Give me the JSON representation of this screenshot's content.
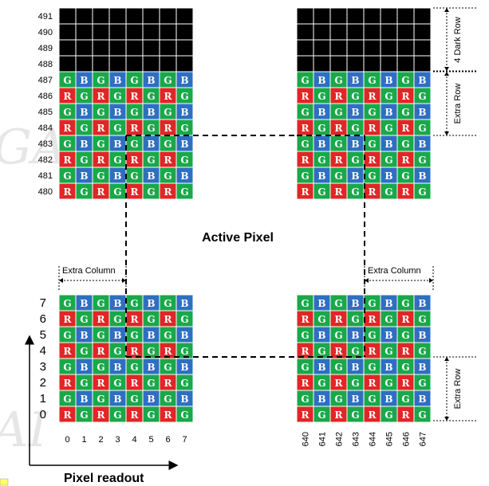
{
  "title": "Active Pixel",
  "axis_label": "Pixel readout",
  "labels": {
    "extra_column": "Extra Column",
    "extra_row": "Extra Row",
    "dark_row": "4 Dark Row"
  },
  "colors": {
    "G": "#1aa84a",
    "B": "#2f6fc2",
    "R": "#e02626",
    "dark": "#000000"
  },
  "blocks": {
    "top_left": {
      "row_labels": [
        "491",
        "490",
        "489",
        "488",
        "487",
        "486",
        "485",
        "484",
        "483",
        "482",
        "481",
        "480"
      ]
    },
    "bottom_left": {
      "row_labels": [
        "7",
        "6",
        "5",
        "4",
        "3",
        "2",
        "1",
        "0"
      ],
      "col_labels": [
        "0",
        "1",
        "2",
        "3",
        "4",
        "5",
        "6",
        "7"
      ]
    },
    "bottom_right": {
      "col_labels": [
        "640",
        "641",
        "642",
        "643",
        "644",
        "645",
        "646",
        "647"
      ]
    }
  },
  "patterns": {
    "gb_row": [
      "G",
      "B",
      "G",
      "B",
      "G",
      "B",
      "G",
      "B"
    ],
    "rg_row": [
      "R",
      "G",
      "R",
      "G",
      "R",
      "G",
      "R",
      "G"
    ]
  }
}
